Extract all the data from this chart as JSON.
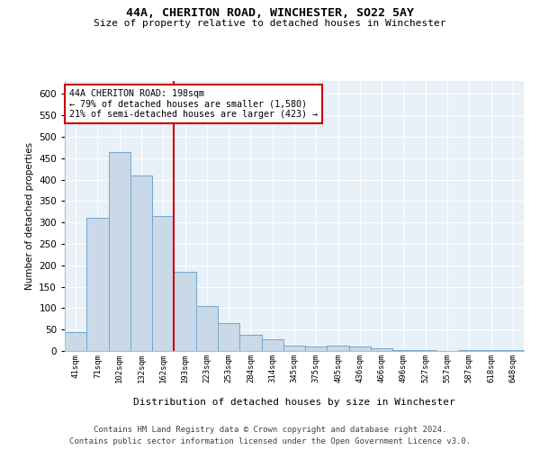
{
  "title": "44A, CHERITON ROAD, WINCHESTER, SO22 5AY",
  "subtitle": "Size of property relative to detached houses in Winchester",
  "xlabel": "Distribution of detached houses by size in Winchester",
  "ylabel": "Number of detached properties",
  "categories": [
    "41sqm",
    "71sqm",
    "102sqm",
    "132sqm",
    "162sqm",
    "193sqm",
    "223sqm",
    "253sqm",
    "284sqm",
    "314sqm",
    "345sqm",
    "375sqm",
    "405sqm",
    "436sqm",
    "466sqm",
    "496sqm",
    "527sqm",
    "557sqm",
    "587sqm",
    "618sqm",
    "648sqm"
  ],
  "values": [
    45,
    310,
    465,
    410,
    315,
    185,
    105,
    65,
    37,
    28,
    13,
    10,
    13,
    10,
    6,
    3,
    3,
    0,
    3,
    3,
    3
  ],
  "bar_color": "#c9d9e8",
  "bar_edge_color": "#6fa8cc",
  "vline_color": "#cc0000",
  "vline_x_index": 4.5,
  "ylim": [
    0,
    630
  ],
  "yticks": [
    0,
    50,
    100,
    150,
    200,
    250,
    300,
    350,
    400,
    450,
    500,
    550,
    600
  ],
  "annotation_text": "44A CHERITON ROAD: 198sqm\n← 79% of detached houses are smaller (1,580)\n21% of semi-detached houses are larger (423) →",
  "annotation_box_color": "#ffffff",
  "annotation_box_edge": "#cc0000",
  "bg_color": "#e8f0f8",
  "fig_bg_color": "#ffffff",
  "footer1": "Contains HM Land Registry data © Crown copyright and database right 2024.",
  "footer2": "Contains public sector information licensed under the Open Government Licence v3.0."
}
